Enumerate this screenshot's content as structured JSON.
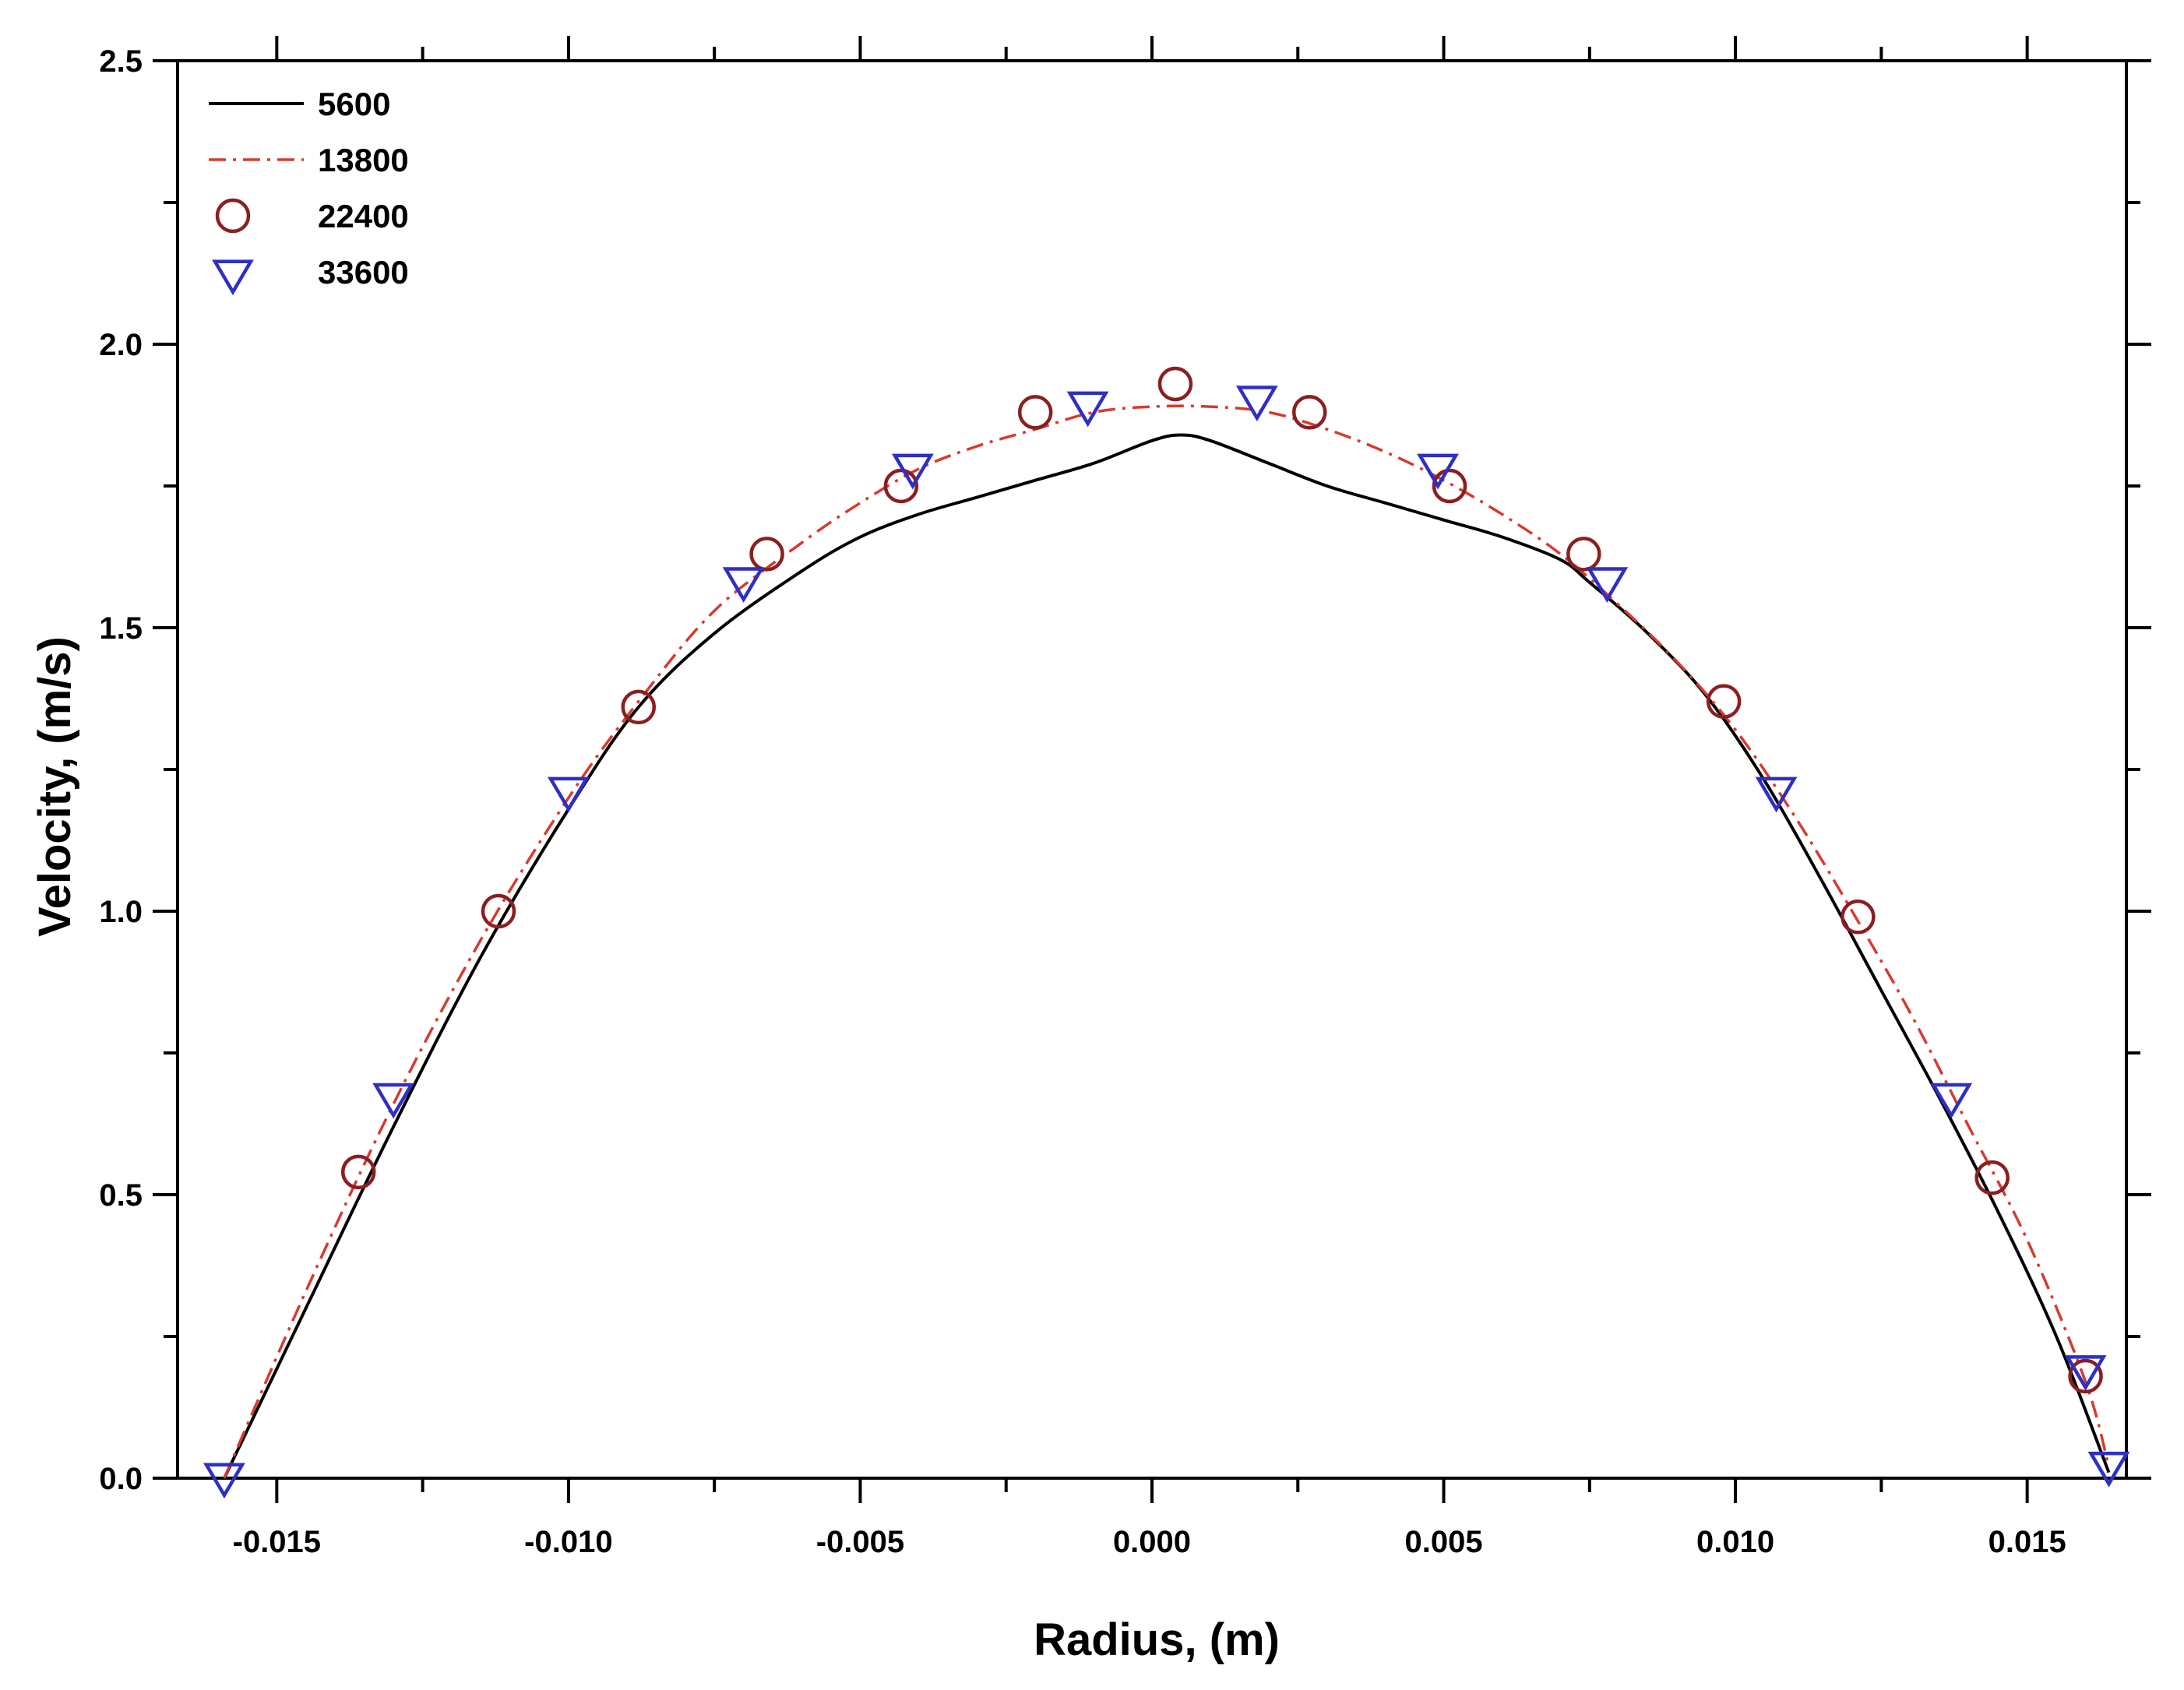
{
  "chart_data": {
    "type": "line",
    "title": "",
    "xlabel": "Radius, (m)",
    "ylabel": "Velocity, (m/s)",
    "xlim": [
      -0.0167,
      0.0167
    ],
    "ylim": [
      0.0,
      2.5
    ],
    "xticks": [
      -0.015,
      -0.01,
      -0.005,
      0.0,
      0.005,
      0.01,
      0.015
    ],
    "xtick_labels": [
      "-0.015",
      "-0.010",
      "-0.005",
      "0.000",
      "0.005",
      "0.010",
      "0.015"
    ],
    "yticks": [
      0.0,
      0.5,
      1.0,
      1.5,
      2.0,
      2.5
    ],
    "ytick_labels": [
      "0.0",
      "0.5",
      "1.0",
      "1.5",
      "2.0",
      "2.5"
    ],
    "grid": false,
    "legend_position": "top-left",
    "series": [
      {
        "name": "5600",
        "style": "solid-line",
        "color": "#000000",
        "x": [
          -0.0159,
          -0.0145,
          -0.013,
          -0.0115,
          -0.01,
          -0.0088,
          -0.0075,
          -0.006,
          -0.005,
          -0.004,
          -0.003,
          -0.002,
          -0.001,
          0.0,
          0.0005,
          0.001,
          0.002,
          0.003,
          0.004,
          0.005,
          0.006,
          0.007,
          0.0075,
          0.0085,
          0.0095,
          0.0105,
          0.0115,
          0.0125,
          0.0135,
          0.0145,
          0.0155,
          0.0164
        ],
        "y": [
          0.0,
          0.3,
          0.62,
          0.92,
          1.18,
          1.36,
          1.49,
          1.6,
          1.66,
          1.7,
          1.73,
          1.76,
          1.79,
          1.83,
          1.84,
          1.83,
          1.79,
          1.75,
          1.72,
          1.69,
          1.66,
          1.62,
          1.58,
          1.49,
          1.38,
          1.23,
          1.05,
          0.86,
          0.67,
          0.47,
          0.25,
          0.01
        ]
      },
      {
        "name": "13800",
        "style": "dash-dot-line",
        "color": "#d83a2e",
        "x": [
          -0.0159,
          -0.0145,
          -0.013,
          -0.0115,
          -0.01,
          -0.0088,
          -0.0075,
          -0.006,
          -0.005,
          -0.004,
          -0.003,
          -0.002,
          -0.001,
          0.0,
          0.001,
          0.002,
          0.003,
          0.004,
          0.005,
          0.006,
          0.007,
          0.008,
          0.009,
          0.01,
          0.011,
          0.012,
          0.013,
          0.014,
          0.015,
          0.016,
          0.0164
        ],
        "y": [
          0.0,
          0.33,
          0.66,
          0.95,
          1.2,
          1.37,
          1.53,
          1.65,
          1.72,
          1.78,
          1.82,
          1.85,
          1.88,
          1.89,
          1.89,
          1.88,
          1.85,
          1.81,
          1.76,
          1.7,
          1.63,
          1.54,
          1.44,
          1.32,
          1.17,
          1.0,
          0.82,
          0.62,
          0.42,
          0.17,
          0.02
        ]
      },
      {
        "name": "22400",
        "style": "open-circle",
        "color": "#8b1f1f",
        "x": [
          -0.0136,
          -0.0112,
          -0.0088,
          -0.0066,
          -0.0043,
          -0.002,
          0.0004,
          0.0027,
          0.0051,
          0.0074,
          0.0098,
          0.0121,
          0.0144,
          0.016
        ],
        "y": [
          0.54,
          1.0,
          1.36,
          1.63,
          1.75,
          1.88,
          1.93,
          1.88,
          1.75,
          1.63,
          1.37,
          0.99,
          0.53,
          0.18
        ]
      },
      {
        "name": "33600",
        "style": "open-down-triangle",
        "color": "#2f2fc4",
        "x": [
          -0.0159,
          -0.013,
          -0.01,
          -0.007,
          -0.0041,
          -0.0011,
          0.0018,
          0.0049,
          0.0078,
          0.0107,
          0.0137,
          0.016,
          0.0164
        ],
        "y": [
          0.0,
          0.67,
          1.21,
          1.58,
          1.78,
          1.89,
          1.9,
          1.78,
          1.58,
          1.21,
          0.67,
          0.19,
          0.02
        ]
      }
    ]
  }
}
